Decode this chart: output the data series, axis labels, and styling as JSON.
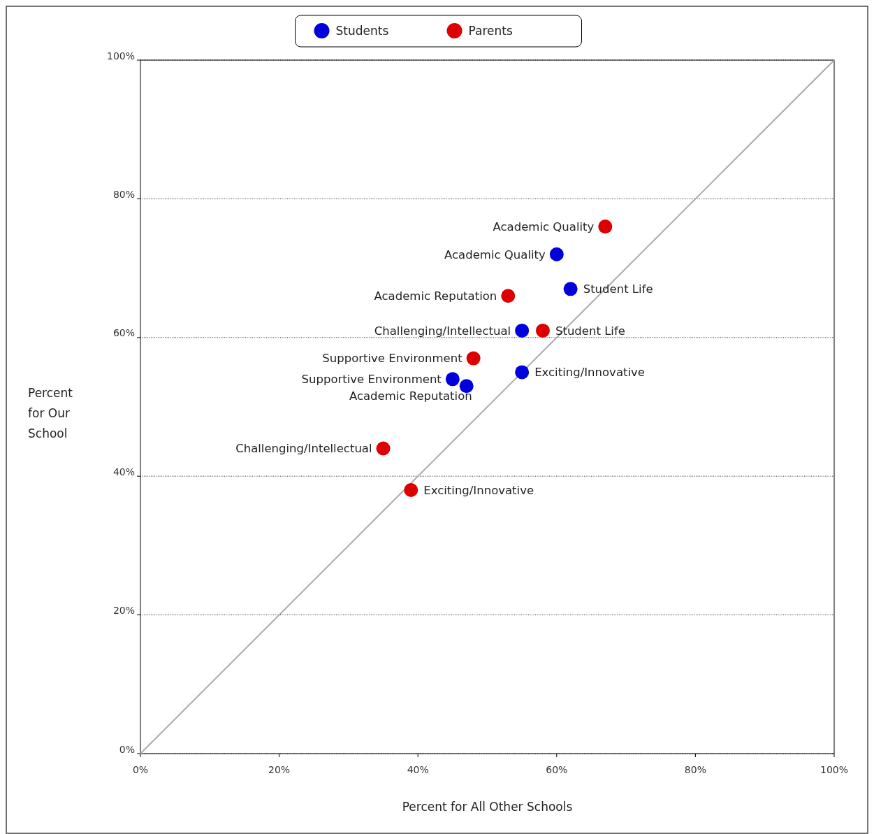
{
  "chart_data": {
    "type": "scatter",
    "xlabel": "Percent for All Other Schools",
    "ylabel": "Percent for Our School",
    "xlim": [
      0,
      100
    ],
    "ylim": [
      0,
      100
    ],
    "xticks": [
      {
        "value": 0,
        "label": "0%"
      },
      {
        "value": 20,
        "label": "20%"
      },
      {
        "value": 40,
        "label": "40%"
      },
      {
        "value": 60,
        "label": "60%"
      },
      {
        "value": 80,
        "label": "80%"
      },
      {
        "value": 100,
        "label": "100%"
      }
    ],
    "yticks": [
      {
        "value": 0,
        "label": "0%"
      },
      {
        "value": 20,
        "label": "20%"
      },
      {
        "value": 40,
        "label": "40%"
      },
      {
        "value": 60,
        "label": "60%"
      },
      {
        "value": 80,
        "label": "80%"
      },
      {
        "value": 100,
        "label": "100%"
      }
    ],
    "grid": "y",
    "legend": "top",
    "marker": "circle",
    "series": [
      {
        "type": "line",
        "color": "#aaaaaa",
        "x": [
          0,
          100
        ],
        "values": [
          0,
          100
        ],
        "marker": "none"
      },
      {
        "name": "Students",
        "color": "#0000dd",
        "x": [
          60,
          62,
          55,
          55,
          45,
          47
        ],
        "values": [
          72,
          67,
          61,
          55,
          54,
          53
        ]
      },
      {
        "name": "Parents",
        "color": "#dd0000",
        "x": [
          67,
          53,
          58,
          48,
          35,
          39
        ],
        "values": [
          76,
          66,
          61,
          57,
          44,
          38
        ]
      }
    ],
    "annotations": [
      {
        "text": "Academic Quality",
        "x": 60,
        "y": 72
      },
      {
        "text": "Student Life",
        "x": 62,
        "y": 67
      },
      {
        "text": "Challenging/Intellectual",
        "x": 55,
        "y": 61
      },
      {
        "text": "Exciting/Innovative",
        "x": 55,
        "y": 55
      },
      {
        "text": "Supportive Environment",
        "x": 45,
        "y": 54
      },
      {
        "text": "Academic Reputation",
        "x": 47,
        "y": 53
      },
      {
        "text": "Academic Quality",
        "x": 67,
        "y": 76
      },
      {
        "text": "Academic Reputation",
        "x": 53,
        "y": 66
      },
      {
        "text": "Student Life",
        "x": 58,
        "y": 61
      },
      {
        "text": "Supportive Environment",
        "x": 48,
        "y": 57
      },
      {
        "text": "Challenging/Intellectual",
        "x": 35,
        "y": 44
      },
      {
        "text": "Exciting/Innovative",
        "x": 39,
        "y": 38
      }
    ]
  }
}
